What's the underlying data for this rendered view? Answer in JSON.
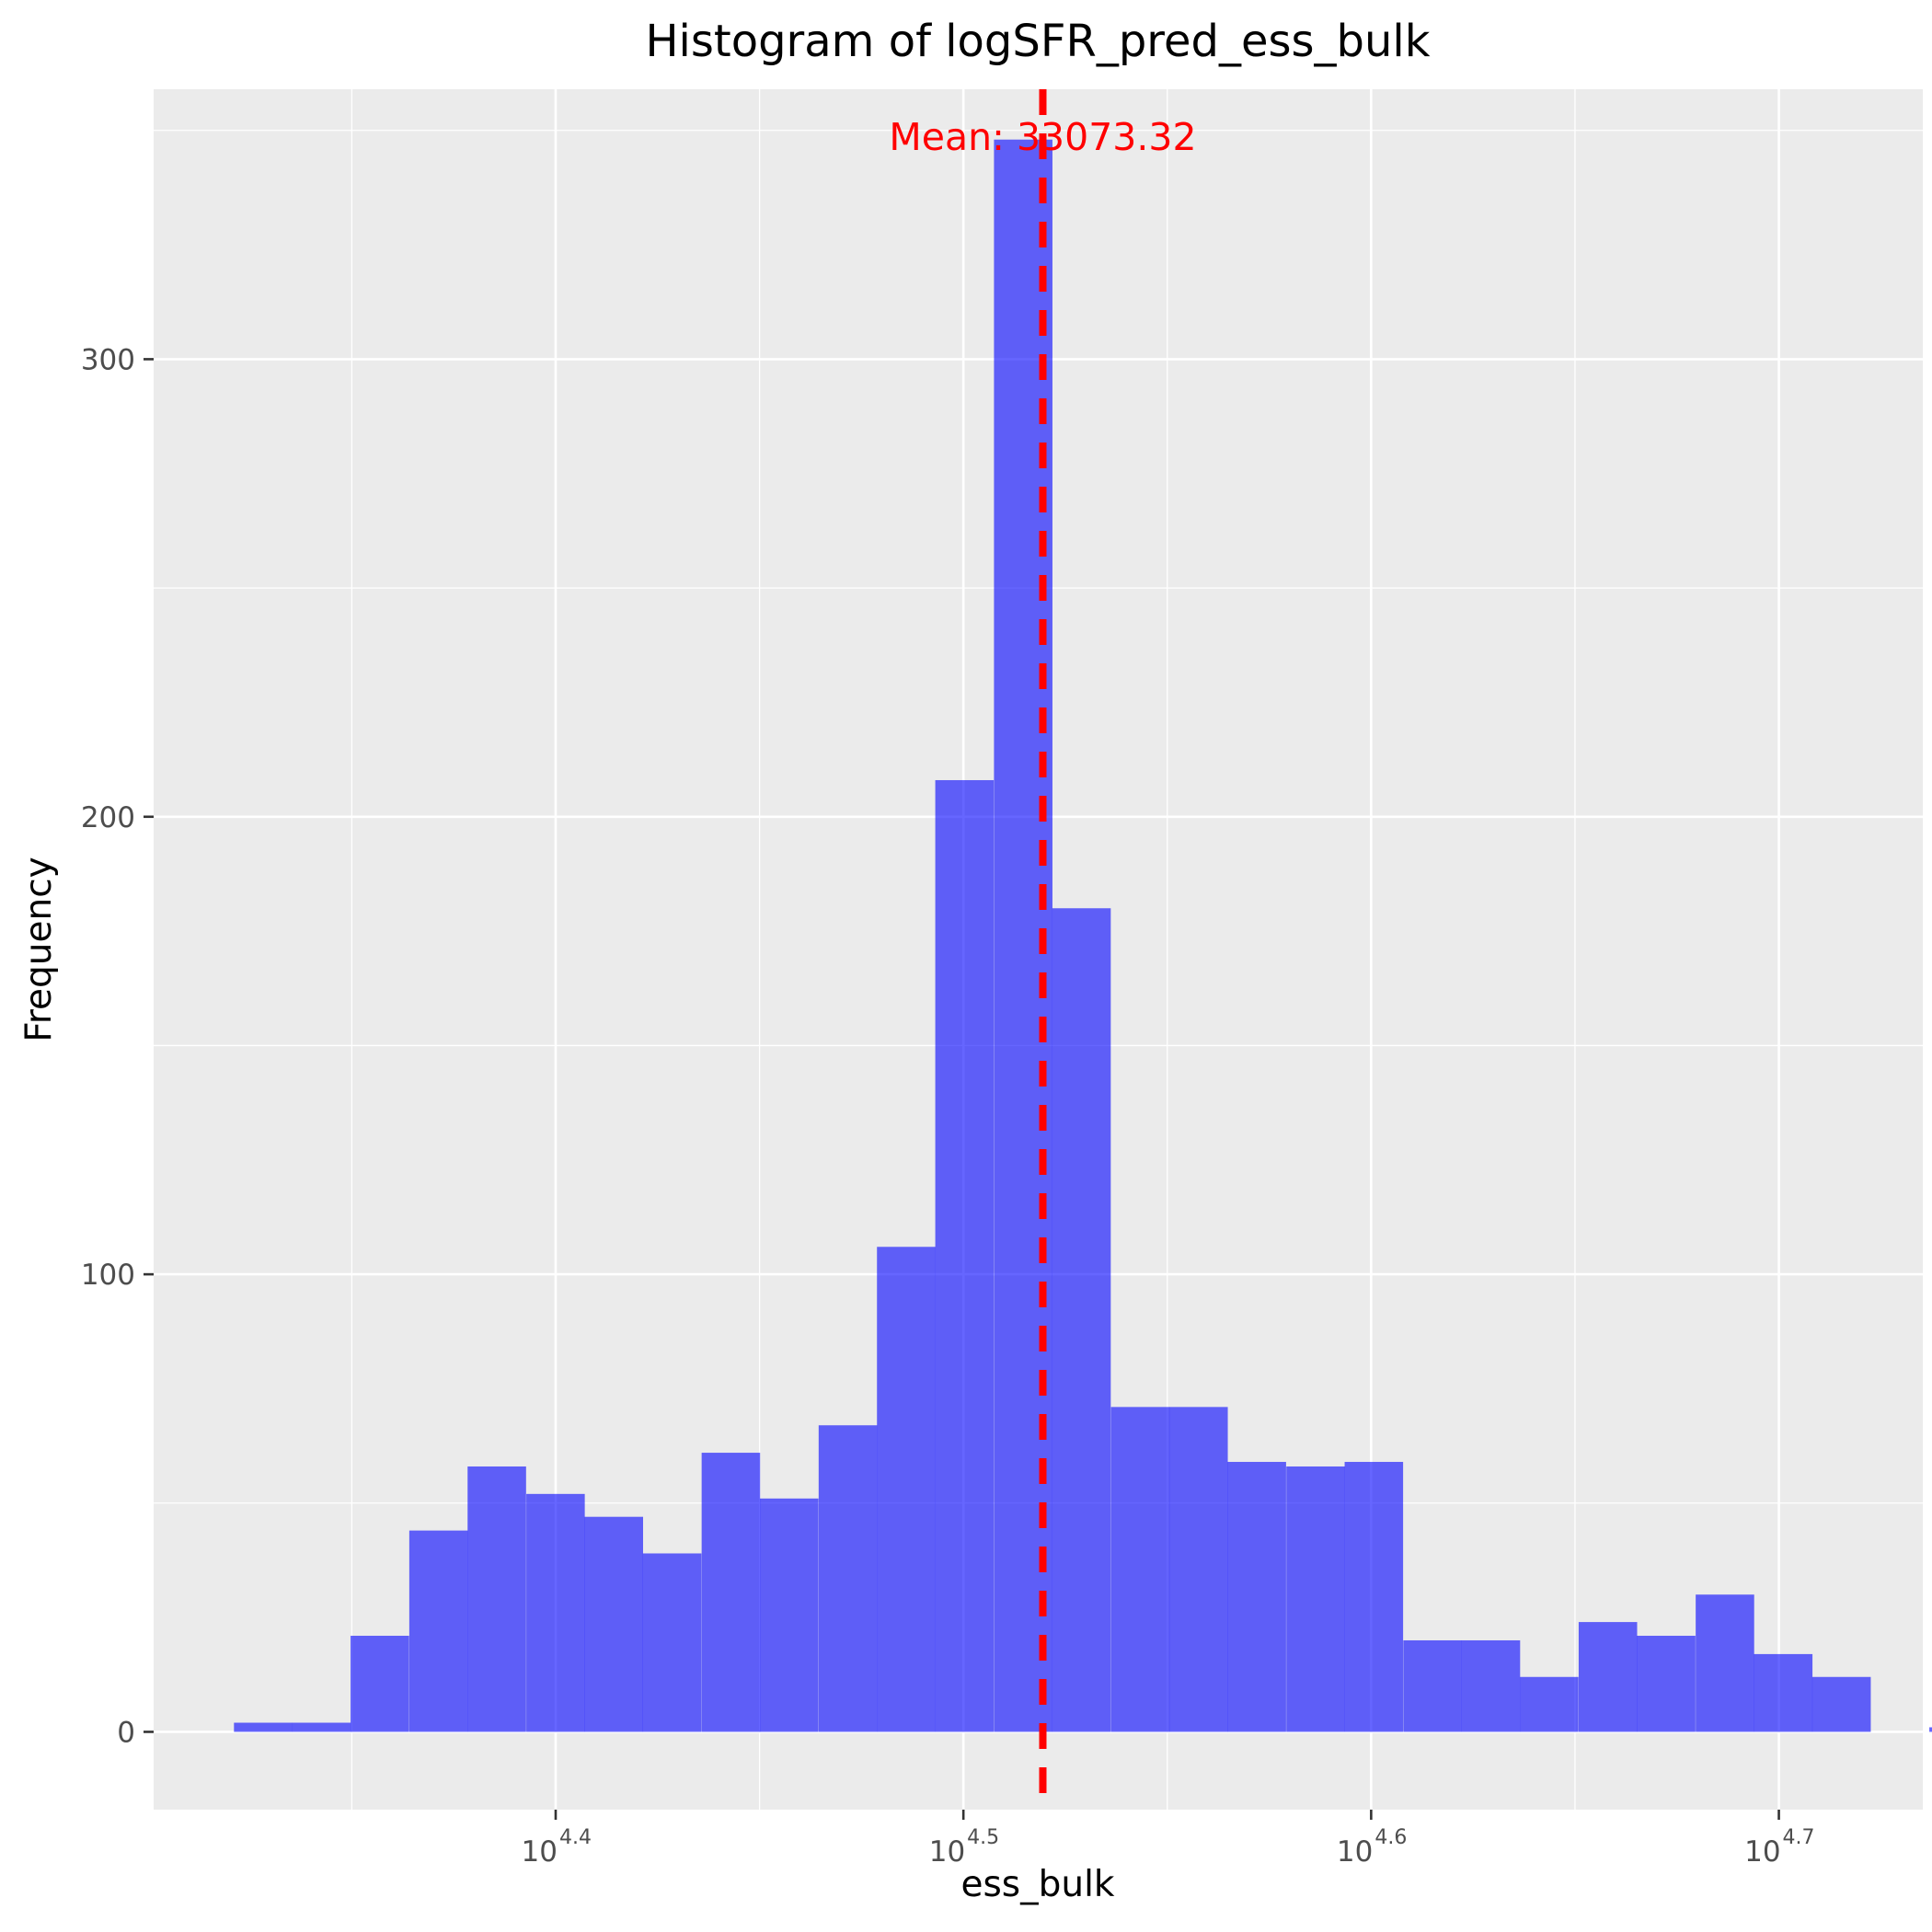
{
  "chart_data": {
    "type": "bar",
    "title": "Histogram of logSFR_pred_ess_bulk",
    "xlabel": "ess_bulk",
    "ylabel": "Frequency",
    "x_scale": "log10",
    "x_ticks": [
      {
        "base": "10",
        "exp": "4.4",
        "value": 25118.86
      },
      {
        "base": "10",
        "exp": "4.5",
        "value": 31622.78
      },
      {
        "base": "10",
        "exp": "4.6",
        "value": 39810.72
      },
      {
        "base": "10",
        "exp": "4.7",
        "value": 50118.72
      }
    ],
    "y_ticks": [
      0,
      100,
      200,
      300
    ],
    "xlim_log10": [
      4.3014,
      4.7353
    ],
    "ylim": [
      -17,
      359
    ],
    "bin_width_log10": 0.01434,
    "bins_log10_start": [
      4.3211,
      4.3354,
      4.3497,
      4.3641,
      4.3784,
      4.3928,
      4.4071,
      4.4214,
      4.4358,
      4.4501,
      4.4645,
      4.4788,
      4.4931,
      4.5075,
      4.5218,
      4.5362,
      4.5505,
      4.5648,
      4.5792,
      4.5935,
      4.6079,
      4.6222,
      4.6365,
      4.6509,
      4.6652,
      4.6796,
      4.6939,
      4.7082,
      4.7226,
      4.7369
    ],
    "counts": [
      2,
      2,
      21,
      44,
      58,
      52,
      47,
      39,
      61,
      51,
      67,
      106,
      208,
      348,
      180,
      71,
      71,
      59,
      58,
      59,
      20,
      20,
      12,
      24,
      21,
      30,
      17,
      12,
      0,
      1
    ],
    "bar_color": "#0000ff",
    "bar_opacity": 0.6,
    "grid": true,
    "panel_background": "#ebebeb",
    "mean_line": {
      "value": 33073.32,
      "color": "#ff0000",
      "style": "dashed",
      "label": "Mean: 33073.32"
    }
  }
}
